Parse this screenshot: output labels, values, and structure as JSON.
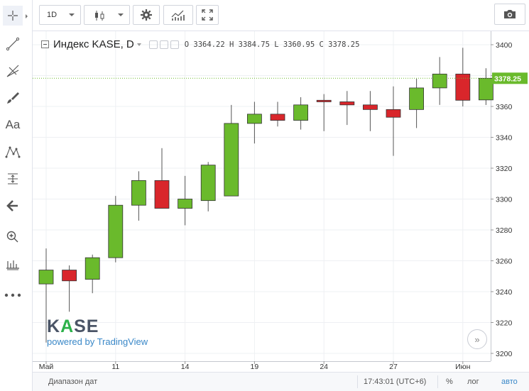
{
  "toolbar": {
    "interval": "1D",
    "icons": [
      "candles-icon",
      "gear-icon",
      "indicators-icon",
      "fullscreen-icon",
      "camera-icon"
    ]
  },
  "left_tools": [
    "crosshair-icon",
    "trend-line-icon",
    "fib-icon",
    "brush-icon",
    "text-icon",
    "pattern-icon",
    "measure-icon",
    "back-arrow-icon",
    "zoom-icon",
    "ruler-icon",
    "more-icon"
  ],
  "left_labels": {
    "text_tool": "Aa"
  },
  "legend": {
    "symbol": "Индекс KASE, D",
    "o_label": "O",
    "o_value": "3364.22",
    "h_label": "H",
    "h_value": "3384.75",
    "l_label": "L",
    "l_value": "3360.95",
    "c_label": "C",
    "c_value": "3378.25"
  },
  "watermark": {
    "logo_pre": "K",
    "logo_a": "A",
    "logo_post": "SE",
    "sub": "powered by TradingView"
  },
  "bottom": {
    "range_label": "Диапазон дат",
    "time": "17:43:01 (UTC+6)",
    "percent": "%",
    "log": "лог",
    "auto": "авто"
  },
  "colors": {
    "up": "#6aba2c",
    "down": "#d9262b",
    "last_price_line": "#6aba2c",
    "grid": "#eef0f3"
  },
  "chart_data": {
    "type": "candlestick",
    "ylim": [
      3200,
      3410
    ],
    "yticks": [
      3200,
      3220,
      3240,
      3260,
      3280,
      3300,
      3320,
      3340,
      3360,
      3380,
      3400
    ],
    "last_price": 3378.25,
    "last_price_label": "3378.25",
    "xticks": [
      {
        "index": 0,
        "label": "Май"
      },
      {
        "index": 3,
        "label": "11"
      },
      {
        "index": 6,
        "label": "14"
      },
      {
        "index": 9,
        "label": "19"
      },
      {
        "index": 12,
        "label": "24"
      },
      {
        "index": 15,
        "label": "27"
      },
      {
        "index": 18,
        "label": "Июн"
      }
    ],
    "candles": [
      {
        "o": 3245,
        "h": 3268,
        "l": 3207,
        "c": 3254
      },
      {
        "o": 3254,
        "h": 3257,
        "l": 3227,
        "c": 3247
      },
      {
        "o": 3248,
        "h": 3264,
        "l": 3239,
        "c": 3262
      },
      {
        "o": 3262,
        "h": 3302,
        "l": 3259,
        "c": 3296
      },
      {
        "o": 3296,
        "h": 3318,
        "l": 3286,
        "c": 3312
      },
      {
        "o": 3312,
        "h": 3333,
        "l": 3294,
        "c": 3294
      },
      {
        "o": 3294,
        "h": 3315,
        "l": 3283,
        "c": 3300
      },
      {
        "o": 3299,
        "h": 3324,
        "l": 3292,
        "c": 3322
      },
      {
        "o": 3302,
        "h": 3361,
        "l": 3302,
        "c": 3349
      },
      {
        "o": 3349,
        "h": 3363,
        "l": 3336,
        "c": 3355
      },
      {
        "o": 3355,
        "h": 3363,
        "l": 3347,
        "c": 3351
      },
      {
        "o": 3351,
        "h": 3366,
        "l": 3345,
        "c": 3361
      },
      {
        "o": 3364,
        "h": 3368,
        "l": 3344,
        "c": 3363
      },
      {
        "o": 3363,
        "h": 3370,
        "l": 3348,
        "c": 3361
      },
      {
        "o": 3361,
        "h": 3370,
        "l": 3344,
        "c": 3358
      },
      {
        "o": 3358,
        "h": 3373,
        "l": 3328,
        "c": 3353
      },
      {
        "o": 3358,
        "h": 3378,
        "l": 3346,
        "c": 3372
      },
      {
        "o": 3372,
        "h": 3392,
        "l": 3361,
        "c": 3381
      },
      {
        "o": 3381,
        "h": 3398,
        "l": 3360,
        "c": 3364
      },
      {
        "o": 3364.22,
        "h": 3384.75,
        "l": 3360.95,
        "c": 3378.25
      }
    ]
  }
}
